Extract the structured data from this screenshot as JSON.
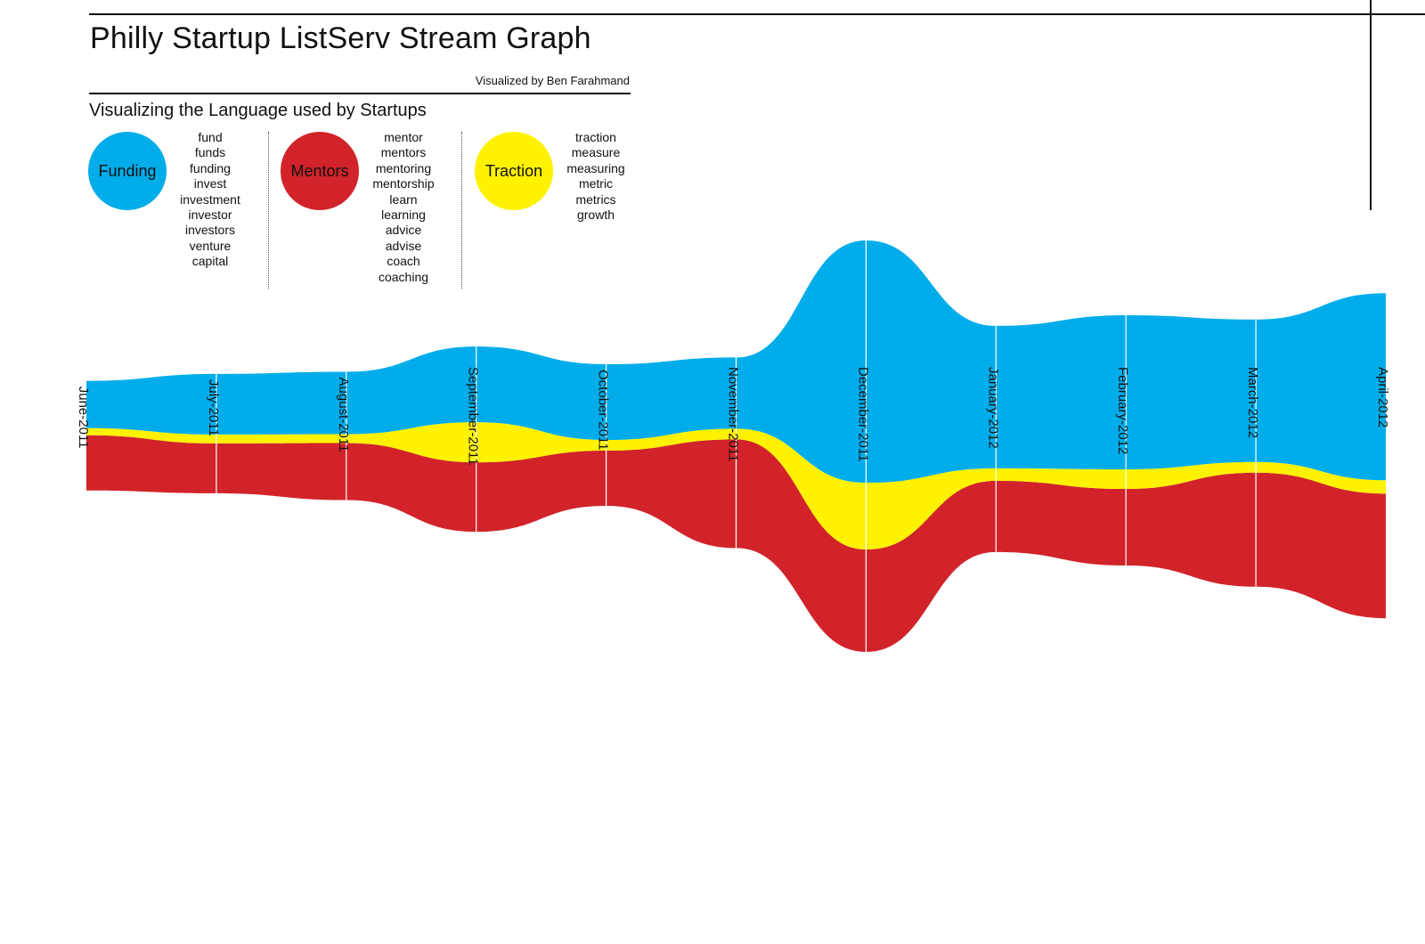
{
  "title": "Philly Startup ListServ Stream Graph",
  "byline": "Visualized by Ben Farahmand",
  "subtitle": "Visualizing the Language used by Startups",
  "legend": {
    "funding": {
      "label": "Funding",
      "color": "#00adea",
      "words": [
        "fund",
        "funds",
        "funding",
        "invest",
        "investment",
        "investor",
        "investors",
        "venture",
        "capital"
      ]
    },
    "mentors": {
      "label": "Mentors",
      "color": "#d2232a",
      "words": [
        "mentor",
        "mentors",
        "mentoring",
        "mentorship",
        "learn",
        "learning",
        "advice",
        "advise",
        "coach",
        "coaching"
      ]
    },
    "traction": {
      "label": "Traction",
      "color": "#fff200",
      "words": [
        "traction",
        "measure",
        "measuring",
        "metric",
        "metrics",
        "growth"
      ]
    }
  },
  "chart_data": {
    "type": "area",
    "subtype": "streamgraph",
    "title": "Philly Startup ListServ Stream Graph",
    "categories": [
      "June-2011",
      "July-2011",
      "August-2011",
      "September-2011",
      "October-2011",
      "November-2011",
      "December-2011",
      "January-2012",
      "February-2012",
      "March-2012",
      "April-2012"
    ],
    "series": [
      {
        "name": "Mentors",
        "color": "#d2232a",
        "values": [
          62,
          56,
          64,
          78,
          62,
          122,
          115,
          80,
          86,
          128,
          140
        ]
      },
      {
        "name": "Traction",
        "color": "#fff200",
        "values": [
          8,
          10,
          10,
          45,
          12,
          12,
          75,
          14,
          22,
          12,
          15
        ]
      },
      {
        "name": "Funding",
        "color": "#00adea",
        "values": [
          53,
          68,
          70,
          85,
          85,
          80,
          272,
          160,
          173,
          160,
          210
        ]
      }
    ]
  }
}
